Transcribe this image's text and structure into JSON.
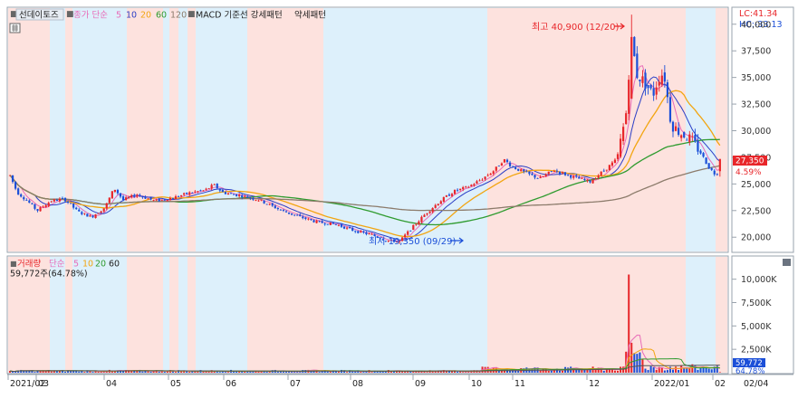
{
  "legend_top": {
    "box1": "■",
    "indicator": "선데이토즈",
    "box2": "■",
    "ma_label": "종가 단순",
    "ma5": "5",
    "ma10": "10",
    "ma20": "20",
    "ma60": "60",
    "ma120": "120",
    "box3": "■",
    "pattern_label": "MACD 기준선 강세패턴",
    "weak_label": "약세패턴"
  },
  "legend_vol": {
    "box": "■",
    "label": "거래량",
    "ma_label": "단순",
    "ma5": "5",
    "ma10": "10",
    "ma20": "20",
    "ma60": "60",
    "value_line": "59,772주(64.78%)"
  },
  "corner": {
    "lc": "LC:41.34",
    "hc": "HC:-33.13"
  },
  "annotations": {
    "high": "최고 40,900 (12/20)",
    "low": "최저 19,350 (09/29)"
  },
  "last_price": {
    "price": "27,350",
    "change": "4.59%"
  },
  "last_volume": {
    "value": "59,772",
    "pct": "64.78%"
  },
  "price_axis": [
    "40,000",
    "37,500",
    "35,000",
    "32,500",
    "30,000",
    "27,500",
    "25,000",
    "22,500",
    "20,000"
  ],
  "volume_axis": [
    "10,000K",
    "7,500K",
    "5,000K",
    "2,500K"
  ],
  "x_axis": [
    "2021/02",
    "03",
    "04",
    "05",
    "06",
    "07",
    "08",
    "09",
    "10",
    "11",
    "12",
    "2022/01",
    "02",
    "02/04"
  ],
  "colors": {
    "up": "#e8262a",
    "down": "#1b4fd8",
    "ma5": "#e86bb8",
    "ma10": "#2b3fc6",
    "ma20": "#f2a511",
    "ma60": "#2f9b2f",
    "ma120": "#8c7b6b",
    "bull_zone": "#fde2de",
    "bear_zone": "#ddf0fb",
    "accent_label": "#e8262a"
  },
  "chart_data": {
    "type": "candlestick",
    "title": "선데이토즈",
    "period": [
      "2021/02",
      "2022/02/04"
    ],
    "ylim": [
      19000,
      41000
    ],
    "high": {
      "value": 40900,
      "date": "12/20"
    },
    "low": {
      "value": 19350,
      "date": "09/29"
    },
    "last_close": 27350,
    "last_change_pct": 4.59,
    "last_volume": 59772,
    "last_volume_pct": 64.78,
    "series": [
      {
        "name": "close",
        "points": [
          [
            "02",
            25800
          ],
          [
            "02",
            24000
          ],
          [
            "03",
            23000
          ],
          [
            "03",
            23500
          ],
          [
            "04",
            21800
          ],
          [
            "04",
            22500
          ],
          [
            "05",
            24500
          ],
          [
            "05",
            23200
          ],
          [
            "06",
            24000
          ],
          [
            "06",
            24500
          ],
          [
            "07",
            25200
          ],
          [
            "07",
            24300
          ],
          [
            "08",
            23000
          ],
          [
            "08",
            21800
          ],
          [
            "09",
            21000
          ],
          [
            "09",
            20200
          ],
          [
            "09",
            19500
          ],
          [
            "10",
            21800
          ],
          [
            "10",
            23500
          ],
          [
            "11",
            25000
          ],
          [
            "11",
            27500
          ],
          [
            "12",
            26500
          ],
          [
            "12",
            40000
          ],
          [
            "12",
            36000
          ],
          [
            "2022/01",
            34000
          ],
          [
            "2022/01",
            29000
          ],
          [
            "02",
            27350
          ]
        ]
      }
    ],
    "volume_ylim": [
      0,
      12000000
    ],
    "volume_spike": 10500000,
    "zones": [
      {
        "type": "bull",
        "from": "2021/02",
        "to": "03"
      },
      {
        "type": "bear",
        "from": "03",
        "to": "03"
      },
      {
        "type": "bull",
        "from": "03",
        "to": "04"
      },
      {
        "type": "bull",
        "from": "04",
        "to": "05"
      },
      {
        "type": "bear",
        "from": "05",
        "to": "06"
      },
      {
        "type": "bull",
        "from": "06",
        "to": "07"
      },
      {
        "type": "bear",
        "from": "07",
        "to": "10"
      },
      {
        "type": "bull",
        "from": "10",
        "to": "2022/01"
      },
      {
        "type": "bear",
        "from": "2022/01",
        "to": "02"
      }
    ]
  }
}
